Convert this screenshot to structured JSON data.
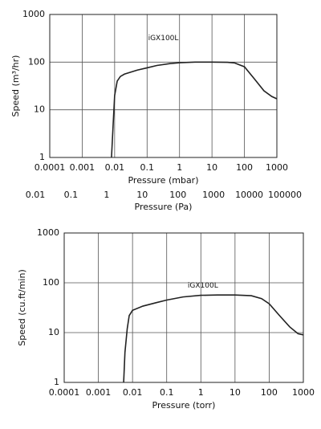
{
  "chart_data": [
    {
      "type": "line",
      "xlabel": "Pressure (mbar)",
      "ylabel": "Speed (m³/hr)",
      "x2label": "Pressure (Pa)",
      "x": [
        0.008,
        0.009,
        0.01,
        0.012,
        0.015,
        0.02,
        0.05,
        0.1,
        0.2,
        0.5,
        1,
        3,
        10,
        30,
        50,
        100,
        200,
        400,
        700,
        1000
      ],
      "series": [
        {
          "name": "iGX100L",
          "color": "#222222",
          "values": [
            1,
            5,
            20,
            40,
            50,
            56,
            68,
            76,
            85,
            93,
            97,
            100,
            100,
            99,
            96,
            80,
            45,
            25,
            19,
            17
          ]
        }
      ],
      "xlim": [
        0.0001,
        1000
      ],
      "ylim": [
        1,
        1000
      ],
      "xticks": [
        0.0001,
        0.001,
        0.01,
        0.1,
        1,
        10,
        100,
        1000
      ],
      "yticks": [
        1,
        10,
        100,
        1000
      ],
      "x2lim": [
        0.01,
        100000
      ],
      "x2ticks": [
        0.01,
        0.1,
        1,
        10,
        100,
        1000,
        10000,
        100000
      ],
      "log_x": true,
      "log_y": true,
      "grid": true
    },
    {
      "type": "line",
      "xlabel": "Pressure (torr)",
      "ylabel": "Speed (cu.ft/min)",
      "x": [
        0.0055,
        0.006,
        0.007,
        0.008,
        0.01,
        0.02,
        0.05,
        0.1,
        0.3,
        1,
        3,
        10,
        30,
        60,
        100,
        200,
        400,
        700,
        1000
      ],
      "series": [
        {
          "name": "iGX100L",
          "color": "#222222",
          "values": [
            1,
            4,
            12,
            22,
            28,
            34,
            40,
            45,
            52,
            56,
            57,
            57,
            55,
            48,
            38,
            22,
            13,
            9.5,
            9
          ]
        }
      ],
      "xlim": [
        0.0001,
        1000
      ],
      "ylim": [
        1,
        1000
      ],
      "xticks": [
        0.0001,
        0.001,
        0.01,
        0.1,
        1,
        10,
        100,
        1000
      ],
      "yticks": [
        1,
        10,
        100,
        1000
      ],
      "log_x": true,
      "log_y": true,
      "grid": true
    }
  ]
}
